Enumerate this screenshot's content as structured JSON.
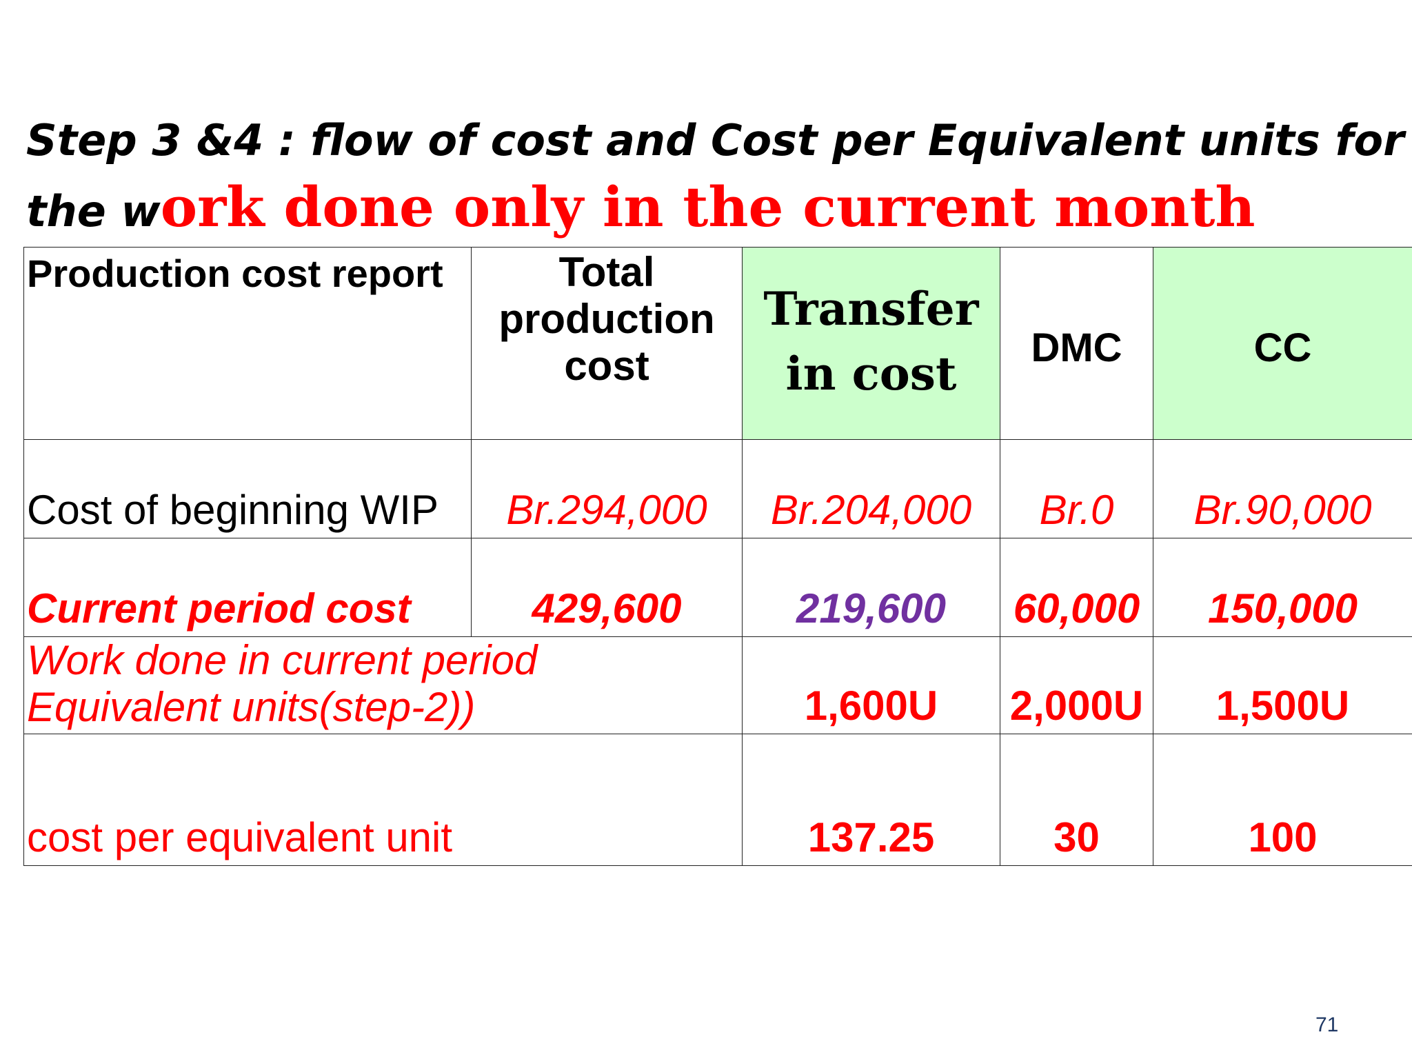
{
  "title": {
    "line1": "Step 3 &4  :  flow of cost and Cost per  Equivalent units for",
    "line2_lead": "the w",
    "line2_rest": "ork done only in the current month"
  },
  "table": {
    "headers": {
      "label": "Production cost report",
      "total": "Total production cost",
      "transfer": "Transfer in cost",
      "dmc": "DMC",
      "cc": "CC"
    },
    "rows": {
      "beginning_wip": {
        "label": "Cost of beginning  WIP",
        "total": "Br.294,000",
        "transfer": "Br.204,000",
        "dmc": "Br.0",
        "cc": "Br.90,000"
      },
      "current_period": {
        "label": "Current period cost",
        "total": "429,600",
        "transfer": "219,600",
        "dmc": "60,000",
        "cc": "150,000"
      },
      "equivalent_units": {
        "label": "Work done in current period Equivalent units(step-2))",
        "transfer": "1,600U",
        "dmc": "2,000U",
        "cc": "1,500U"
      },
      "cost_per_unit": {
        "label": "cost per equivalent unit",
        "transfer": "137.25",
        "dmc": "30",
        "cc": "100"
      }
    }
  },
  "page_number": "71",
  "colors": {
    "highlight_green": "#ccffcc",
    "red": "#ff0000",
    "purple": "#7030a0"
  }
}
